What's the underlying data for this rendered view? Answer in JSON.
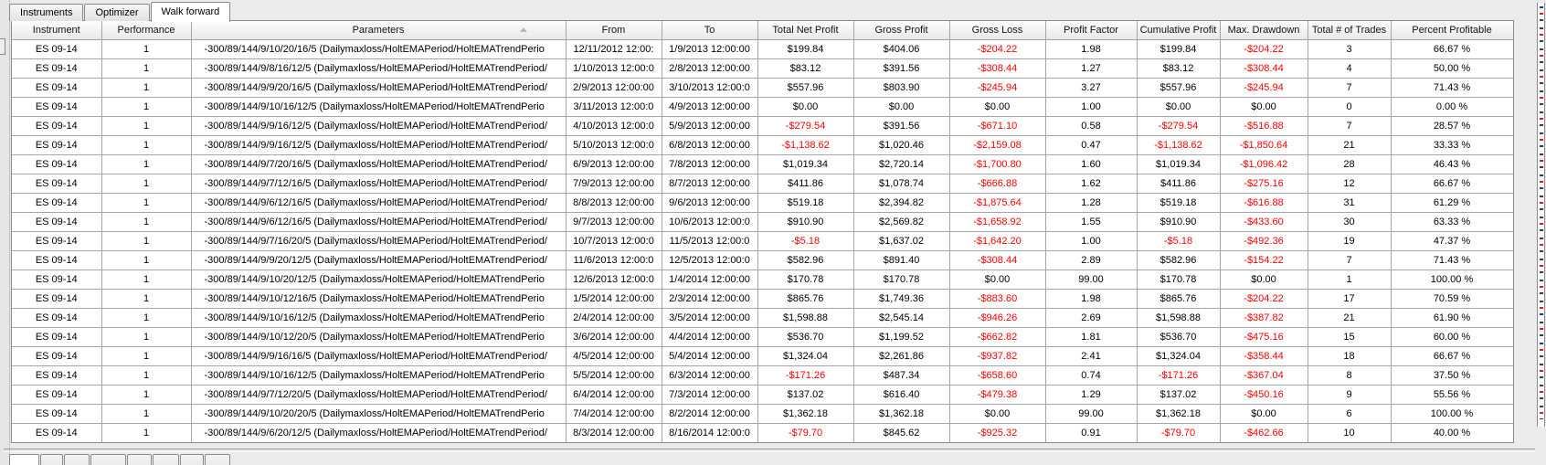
{
  "tabs": {
    "items": [
      {
        "label": "Instruments",
        "active": false
      },
      {
        "label": "Optimizer",
        "active": false
      },
      {
        "label": "Walk forward",
        "active": true
      }
    ]
  },
  "table": {
    "sorted_by": "parameters",
    "columns": [
      {
        "key": "instrument",
        "label": "Instrument"
      },
      {
        "key": "performance",
        "label": "Performance"
      },
      {
        "key": "parameters",
        "label": "Parameters"
      },
      {
        "key": "from",
        "label": "From"
      },
      {
        "key": "to",
        "label": "To"
      },
      {
        "key": "total_net_profit",
        "label": "Total Net Profit"
      },
      {
        "key": "gross_profit",
        "label": "Gross Profit"
      },
      {
        "key": "gross_loss",
        "label": "Gross Loss"
      },
      {
        "key": "profit_factor",
        "label": "Profit Factor"
      },
      {
        "key": "cumulative_profit",
        "label": "Cumulative Profit"
      },
      {
        "key": "max_drawdown",
        "label": "Max. Drawdown"
      },
      {
        "key": "total_trades",
        "label": "Total # of Trades"
      },
      {
        "key": "percent_profitable",
        "label": "Percent Profitable"
      }
    ],
    "rows": [
      [
        "ES 09-14",
        "1",
        "-300/89/144/9/10/20/16/5 (Dailymaxloss/HoltEMAPeriod/HoltEMATrendPerio",
        "12/11/2012 12:00:",
        "1/9/2013 12:00:00",
        "$199.84",
        "$404.06",
        "-$204.22",
        "1.98",
        "$199.84",
        "-$204.22",
        "3",
        "66.67 %"
      ],
      [
        "ES 09-14",
        "1",
        "-300/89/144/9/8/16/12/5 (Dailymaxloss/HoltEMAPeriod/HoltEMATrendPeriod/",
        "1/10/2013 12:00:0",
        "2/8/2013 12:00:00",
        "$83.12",
        "$391.56",
        "-$308.44",
        "1.27",
        "$83.12",
        "-$308.44",
        "4",
        "50.00 %"
      ],
      [
        "ES 09-14",
        "1",
        "-300/89/144/9/9/20/16/5 (Dailymaxloss/HoltEMAPeriod/HoltEMATrendPeriod/",
        "2/9/2013 12:00:00",
        "3/10/2013 12:00:0",
        "$557.96",
        "$803.90",
        "-$245.94",
        "3.27",
        "$557.96",
        "-$245.94",
        "7",
        "71.43 %"
      ],
      [
        "ES 09-14",
        "1",
        "-300/89/144/9/10/16/12/5 (Dailymaxloss/HoltEMAPeriod/HoltEMATrendPerio",
        "3/11/2013 12:00:0",
        "4/9/2013 12:00:00",
        "$0.00",
        "$0.00",
        "$0.00",
        "1.00",
        "$0.00",
        "$0.00",
        "0",
        "0.00 %"
      ],
      [
        "ES 09-14",
        "1",
        "-300/89/144/9/9/16/12/5 (Dailymaxloss/HoltEMAPeriod/HoltEMATrendPeriod/",
        "4/10/2013 12:00:0",
        "5/9/2013 12:00:00",
        "-$279.54",
        "$391.56",
        "-$671.10",
        "0.58",
        "-$279.54",
        "-$516.88",
        "7",
        "28.57 %"
      ],
      [
        "ES 09-14",
        "1",
        "-300/89/144/9/9/16/12/5 (Dailymaxloss/HoltEMAPeriod/HoltEMATrendPeriod/",
        "5/10/2013 12:00:0",
        "6/8/2013 12:00:00",
        "-$1,138.62",
        "$1,020.46",
        "-$2,159.08",
        "0.47",
        "-$1,138.62",
        "-$1,850.64",
        "21",
        "33.33 %"
      ],
      [
        "ES 09-14",
        "1",
        "-300/89/144/9/7/20/16/5 (Dailymaxloss/HoltEMAPeriod/HoltEMATrendPeriod/",
        "6/9/2013 12:00:00",
        "7/8/2013 12:00:00",
        "$1,019.34",
        "$2,720.14",
        "-$1,700.80",
        "1.60",
        "$1,019.34",
        "-$1,096.42",
        "28",
        "46.43 %"
      ],
      [
        "ES 09-14",
        "1",
        "-300/89/144/9/7/12/16/5 (Dailymaxloss/HoltEMAPeriod/HoltEMATrendPeriod/",
        "7/9/2013 12:00:00",
        "8/7/2013 12:00:00",
        "$411.86",
        "$1,078.74",
        "-$666.88",
        "1.62",
        "$411.86",
        "-$275.16",
        "12",
        "66.67 %"
      ],
      [
        "ES 09-14",
        "1",
        "-300/89/144/9/6/12/16/5 (Dailymaxloss/HoltEMAPeriod/HoltEMATrendPeriod/",
        "8/8/2013 12:00:00",
        "9/6/2013 12:00:00",
        "$519.18",
        "$2,394.82",
        "-$1,875.64",
        "1.28",
        "$519.18",
        "-$616.88",
        "31",
        "61.29 %"
      ],
      [
        "ES 09-14",
        "1",
        "-300/89/144/9/6/12/16/5 (Dailymaxloss/HoltEMAPeriod/HoltEMATrendPeriod/",
        "9/7/2013 12:00:00",
        "10/6/2013 12:00:0",
        "$910.90",
        "$2,569.82",
        "-$1,658.92",
        "1.55",
        "$910.90",
        "-$433.60",
        "30",
        "63.33 %"
      ],
      [
        "ES 09-14",
        "1",
        "-300/89/144/9/7/16/20/5 (Dailymaxloss/HoltEMAPeriod/HoltEMATrendPeriod/",
        "10/7/2013 12:00:0",
        "11/5/2013 12:00:0",
        "-$5.18",
        "$1,637.02",
        "-$1,642.20",
        "1.00",
        "-$5.18",
        "-$492.36",
        "19",
        "47.37 %"
      ],
      [
        "ES 09-14",
        "1",
        "-300/89/144/9/9/20/12/5 (Dailymaxloss/HoltEMAPeriod/HoltEMATrendPeriod/",
        "11/6/2013 12:00:0",
        "12/5/2013 12:00:0",
        "$582.96",
        "$891.40",
        "-$308.44",
        "2.89",
        "$582.96",
        "-$154.22",
        "7",
        "71.43 %"
      ],
      [
        "ES 09-14",
        "1",
        "-300/89/144/9/10/20/12/5 (Dailymaxloss/HoltEMAPeriod/HoltEMATrendPerio",
        "12/6/2013 12:00:0",
        "1/4/2014 12:00:00",
        "$170.78",
        "$170.78",
        "$0.00",
        "99.00",
        "$170.78",
        "$0.00",
        "1",
        "100.00 %"
      ],
      [
        "ES 09-14",
        "1",
        "-300/89/144/9/10/12/16/5 (Dailymaxloss/HoltEMAPeriod/HoltEMATrendPerio",
        "1/5/2014 12:00:00",
        "2/3/2014 12:00:00",
        "$865.76",
        "$1,749.36",
        "-$883.60",
        "1.98",
        "$865.76",
        "-$204.22",
        "17",
        "70.59 %"
      ],
      [
        "ES 09-14",
        "1",
        "-300/89/144/9/10/16/12/5 (Dailymaxloss/HoltEMAPeriod/HoltEMATrendPerio",
        "2/4/2014 12:00:00",
        "3/5/2014 12:00:00",
        "$1,598.88",
        "$2,545.14",
        "-$946.26",
        "2.69",
        "$1,598.88",
        "-$387.82",
        "21",
        "61.90 %"
      ],
      [
        "ES 09-14",
        "1",
        "-300/89/144/9/10/12/20/5 (Dailymaxloss/HoltEMAPeriod/HoltEMATrendPerio",
        "3/6/2014 12:00:00",
        "4/4/2014 12:00:00",
        "$536.70",
        "$1,199.52",
        "-$662.82",
        "1.81",
        "$536.70",
        "-$475.16",
        "15",
        "60.00 %"
      ],
      [
        "ES 09-14",
        "1",
        "-300/89/144/9/9/16/16/5 (Dailymaxloss/HoltEMAPeriod/HoltEMATrendPeriod/",
        "4/5/2014 12:00:00",
        "5/4/2014 12:00:00",
        "$1,324.04",
        "$2,261.86",
        "-$937.82",
        "2.41",
        "$1,324.04",
        "-$358.44",
        "18",
        "66.67 %"
      ],
      [
        "ES 09-14",
        "1",
        "-300/89/144/9/10/16/12/5 (Dailymaxloss/HoltEMAPeriod/HoltEMATrendPerio",
        "5/5/2014 12:00:00",
        "6/3/2014 12:00:00",
        "-$171.26",
        "$487.34",
        "-$658.60",
        "0.74",
        "-$171.26",
        "-$367.04",
        "8",
        "37.50 %"
      ],
      [
        "ES 09-14",
        "1",
        "-300/89/144/9/7/12/20/5 (Dailymaxloss/HoltEMAPeriod/HoltEMATrendPeriod/",
        "6/4/2014 12:00:00",
        "7/3/2014 12:00:00",
        "$137.02",
        "$616.40",
        "-$479.38",
        "1.29",
        "$137.02",
        "-$450.16",
        "9",
        "55.56 %"
      ],
      [
        "ES 09-14",
        "1",
        "-300/89/144/9/10/20/20/5 (Dailymaxloss/HoltEMAPeriod/HoltEMATrendPerio",
        "7/4/2014 12:00:00",
        "8/2/2014 12:00:00",
        "$1,362.18",
        "$1,362.18",
        "$0.00",
        "99.00",
        "$1,362.18",
        "$0.00",
        "6",
        "100.00 %"
      ],
      [
        "ES 09-14",
        "1",
        "-300/89/144/9/6/20/12/5 (Dailymaxloss/HoltEMAPeriod/HoltEMATrendPeriod/",
        "8/3/2014 12:00:00",
        "8/16/2014 12:00:0",
        "-$79.70",
        "$845.62",
        "-$925.32",
        "0.91",
        "-$79.70",
        "-$462.66",
        "10",
        "40.00 %"
      ]
    ]
  },
  "bottom_tab_strip": {
    "visible_stub_count": 8,
    "active_stub_index": 0
  },
  "colors": {
    "negative_text": "#ff0000",
    "positive_text": "#000000",
    "grid_line": "#a6a6a6",
    "window_bg": "#ebebeb",
    "active_tab_bg": "#ffffff"
  }
}
